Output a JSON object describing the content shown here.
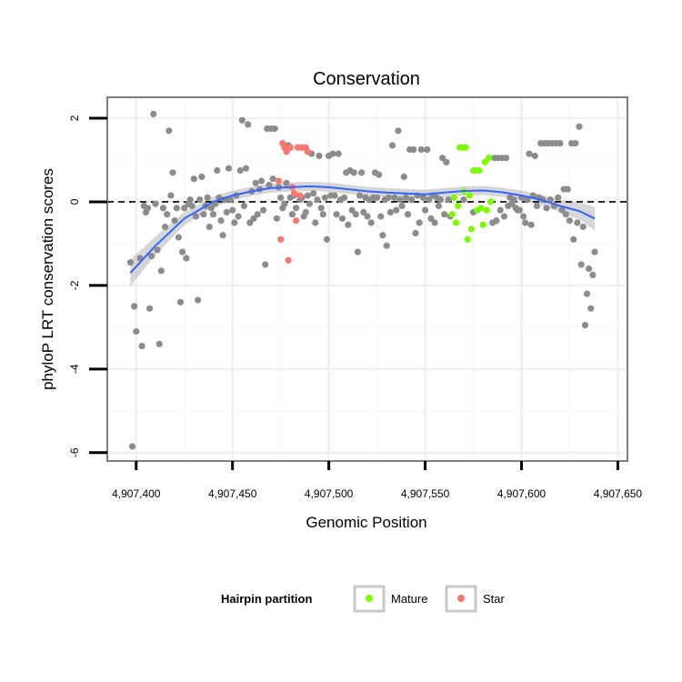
{
  "chart_data": {
    "type": "scatter",
    "title": "Conservation",
    "xlabel": "Genomic Position",
    "ylabel": "phyloP LRT conservation scores",
    "xlim": [
      4907385,
      4907655
    ],
    "ylim": [
      -6.2,
      2.5
    ],
    "x_ticks": [
      {
        "value": 4907400,
        "label": "4,907,400"
      },
      {
        "value": 4907450,
        "label": "4,907,450"
      },
      {
        "value": 4907500,
        "label": "4,907,500"
      },
      {
        "value": 4907550,
        "label": "4,907,550"
      },
      {
        "value": 4907600,
        "label": "4,907,600"
      },
      {
        "value": 4907650,
        "label": "4,907,650"
      }
    ],
    "y_ticks": [
      {
        "value": 2,
        "label": "2"
      },
      {
        "value": 0,
        "label": "0"
      },
      {
        "value": -2,
        "label": "-2"
      },
      {
        "value": -4,
        "label": "-4"
      },
      {
        "value": -6,
        "label": "-6"
      }
    ],
    "reference_line": {
      "y": 0,
      "style": "dashed",
      "color": "#000000"
    },
    "legend": {
      "title": "Hairpin partition",
      "position": "bottom",
      "entries": [
        {
          "label": "Mature",
          "color": "#7CFC00"
        },
        {
          "label": "Star",
          "color": "#F8766D"
        }
      ]
    },
    "colors": {
      "other": "#8C8C8C",
      "smooth_line": "#3366FF",
      "confidence_band": "#C8C8C8"
    },
    "series": [
      {
        "name": "Other",
        "color": "#8C8C8C",
        "points": [
          [
            4907397,
            -1.45
          ],
          [
            4907398,
            -5.85
          ],
          [
            4907399,
            -2.5
          ],
          [
            4907400,
            -3.1
          ],
          [
            4907402,
            -1.35
          ],
          [
            4907403,
            -3.45
          ],
          [
            4907404,
            -0.1
          ],
          [
            4907405,
            -0.25
          ],
          [
            4907406,
            -0.15
          ],
          [
            4907407,
            -2.55
          ],
          [
            4907408,
            -1.3
          ],
          [
            4907409,
            2.1
          ],
          [
            4907410,
            -0.05
          ],
          [
            4907411,
            -1.15
          ],
          [
            4907412,
            -3.4
          ],
          [
            4907413,
            -1.65
          ],
          [
            4907414,
            -0.15
          ],
          [
            4907415,
            -0.6
          ],
          [
            4907416,
            -0.3
          ],
          [
            4907417,
            1.7
          ],
          [
            4907418,
            0.15
          ],
          [
            4907419,
            0.7
          ],
          [
            4907420,
            -0.45
          ],
          [
            4907421,
            -0.15
          ],
          [
            4907422,
            -0.85
          ],
          [
            4907423,
            -2.4
          ],
          [
            4907424,
            -1.2
          ],
          [
            4907425,
            -0.15
          ],
          [
            4907426,
            -1.35
          ],
          [
            4907427,
            -0.05
          ],
          [
            4907428,
            0.05
          ],
          [
            4907429,
            -0.1
          ],
          [
            4907430,
            0.55
          ],
          [
            4907431,
            -0.35
          ],
          [
            4907432,
            -2.35
          ],
          [
            4907433,
            0.05
          ],
          [
            4907434,
            0.6
          ],
          [
            4907435,
            -0.3
          ],
          [
            4907436,
            -0.1
          ],
          [
            4907437,
            0.1
          ],
          [
            4907438,
            -0.6
          ],
          [
            4907439,
            -0.15
          ],
          [
            4907440,
            -0.3
          ],
          [
            4907441,
            -0.05
          ],
          [
            4907442,
            0.75
          ],
          [
            4907443,
            0.1
          ],
          [
            4907444,
            -0.45
          ],
          [
            4907445,
            -0.8
          ],
          [
            4907446,
            0.05
          ],
          [
            4907447,
            -0.25
          ],
          [
            4907448,
            0.8
          ],
          [
            4907449,
            0.05
          ],
          [
            4907450,
            -0.2
          ],
          [
            4907451,
            -0.5
          ],
          [
            4907452,
            0.15
          ],
          [
            4907453,
            -0.35
          ],
          [
            4907454,
            0.75
          ],
          [
            4907455,
            1.95
          ],
          [
            4907456,
            -0.1
          ],
          [
            4907457,
            0.8
          ],
          [
            4907458,
            1.85
          ],
          [
            4907459,
            -0.5
          ],
          [
            4907460,
            0.25
          ],
          [
            4907461,
            -0.4
          ],
          [
            4907462,
            0.45
          ],
          [
            4907463,
            -0.3
          ],
          [
            4907464,
            0.3
          ],
          [
            4907465,
            0.5
          ],
          [
            4907466,
            -0.2
          ],
          [
            4907467,
            -1.5
          ],
          [
            4907468,
            1.75
          ],
          [
            4907469,
            0.4
          ],
          [
            4907470,
            1.75
          ],
          [
            4907471,
            0.55
          ],
          [
            4907472,
            1.75
          ],
          [
            4907473,
            -0.4
          ],
          [
            4907474,
            0.35
          ],
          [
            4907475,
            0.1
          ],
          [
            4907476,
            -0.15
          ],
          [
            4907477,
            -0.05
          ],
          [
            4907478,
            0.45
          ],
          [
            4907479,
            1.35
          ],
          [
            4907480,
            0.1
          ],
          [
            4907481,
            -0.3
          ],
          [
            4907482,
            0.15
          ],
          [
            4907483,
            -0.15
          ],
          [
            4907484,
            1.3
          ],
          [
            4907485,
            0.05
          ],
          [
            4907486,
            0.1
          ],
          [
            4907487,
            -0.35
          ],
          [
            4907488,
            -0.25
          ],
          [
            4907489,
            0.15
          ],
          [
            4907490,
            -0.05
          ],
          [
            4907491,
            1.15
          ],
          [
            4907492,
            0.2
          ],
          [
            4907493,
            -0.5
          ],
          [
            4907494,
            0.05
          ],
          [
            4907495,
            1.1
          ],
          [
            4907496,
            -0.15
          ],
          [
            4907497,
            -0.3
          ],
          [
            4907498,
            0.1
          ],
          [
            4907499,
            -0.9
          ],
          [
            4907500,
            1.1
          ],
          [
            4907501,
            0.15
          ],
          [
            4907502,
            1.15
          ],
          [
            4907503,
            0.15
          ],
          [
            4907504,
            -0.3
          ],
          [
            4907505,
            1.15
          ],
          [
            4907506,
            0.05
          ],
          [
            4907507,
            -0.4
          ],
          [
            4907508,
            0.1
          ],
          [
            4907509,
            0.7
          ],
          [
            4907510,
            -0.55
          ],
          [
            4907511,
            0.75
          ],
          [
            4907512,
            -0.2
          ],
          [
            4907513,
            0.7
          ],
          [
            4907514,
            -0.3
          ],
          [
            4907515,
            -1.2
          ],
          [
            4907516,
            0.15
          ],
          [
            4907517,
            0.7
          ],
          [
            4907518,
            -0.25
          ],
          [
            4907519,
            0.1
          ],
          [
            4907520,
            -0.35
          ],
          [
            4907521,
            0.05
          ],
          [
            4907522,
            -0.5
          ],
          [
            4907523,
            0.1
          ],
          [
            4907524,
            0.7
          ],
          [
            4907525,
            0.1
          ],
          [
            4907526,
            0.65
          ],
          [
            4907527,
            -0.35
          ],
          [
            4907528,
            -0.8
          ],
          [
            4907529,
            0.05
          ],
          [
            4907530,
            -1.05
          ],
          [
            4907531,
            0.1
          ],
          [
            4907532,
            -0.25
          ],
          [
            4907533,
            1.35
          ],
          [
            4907534,
            0.1
          ],
          [
            4907535,
            -0.2
          ],
          [
            4907536,
            1.7
          ],
          [
            4907537,
            0.05
          ],
          [
            4907538,
            -0.1
          ],
          [
            4907539,
            0.6
          ],
          [
            4907540,
            0.1
          ],
          [
            4907541,
            -0.3
          ],
          [
            4907542,
            1.25
          ],
          [
            4907543,
            0.05
          ],
          [
            4907544,
            1.25
          ],
          [
            4907545,
            -0.75
          ],
          [
            4907546,
            0.15
          ],
          [
            4907547,
            -0.5
          ],
          [
            4907548,
            1.25
          ],
          [
            4907549,
            0.1
          ],
          [
            4907550,
            -0.2
          ],
          [
            4907551,
            1.25
          ],
          [
            4907552,
            0.05
          ],
          [
            4907553,
            -0.4
          ],
          [
            4907554,
            0.15
          ],
          [
            4907555,
            -0.5
          ],
          [
            4907556,
            0.1
          ],
          [
            4907557,
            -0.1
          ],
          [
            4907558,
            0.05
          ],
          [
            4907559,
            1.05
          ],
          [
            4907560,
            -0.3
          ],
          [
            4907561,
            0.95
          ],
          [
            4907562,
            0.05
          ],
          [
            4907563,
            -0.35
          ],
          [
            4907570,
            0.05
          ],
          [
            4907575,
            -0.25
          ],
          [
            4907585,
            -0.5
          ],
          [
            4907586,
            1.05
          ],
          [
            4907587,
            -0.45
          ],
          [
            4907588,
            1.05
          ],
          [
            4907589,
            -0.2
          ],
          [
            4907590,
            1.05
          ],
          [
            4907591,
            -0.35
          ],
          [
            4907592,
            1.05
          ],
          [
            4907593,
            -0.1
          ],
          [
            4907594,
            0.1
          ],
          [
            4907595,
            -0.05
          ],
          [
            4907596,
            0.05
          ],
          [
            4907597,
            -0.15
          ],
          [
            4907598,
            -0.2
          ],
          [
            4907599,
            -0.2
          ],
          [
            4907600,
            0.1
          ],
          [
            4907601,
            -0.35
          ],
          [
            4907602,
            -0.5
          ],
          [
            4907603,
            0.05
          ],
          [
            4907604,
            1.15
          ],
          [
            4907605,
            -0.55
          ],
          [
            4907606,
            0.15
          ],
          [
            4907607,
            1.1
          ],
          [
            4907608,
            -0.1
          ],
          [
            4907609,
            0.1
          ],
          [
            4907610,
            1.4
          ],
          [
            4907611,
            0.05
          ],
          [
            4907612,
            1.4
          ],
          [
            4907613,
            -0.15
          ],
          [
            4907614,
            1.4
          ],
          [
            4907615,
            0.05
          ],
          [
            4907616,
            1.4
          ],
          [
            4907617,
            -0.1
          ],
          [
            4907618,
            1.4
          ],
          [
            4907619,
            0.1
          ],
          [
            4907620,
            1.4
          ],
          [
            4907621,
            -0.2
          ],
          [
            4907622,
            0.3
          ],
          [
            4907623,
            -0.3
          ],
          [
            4907624,
            0.3
          ],
          [
            4907625,
            -0.45
          ],
          [
            4907626,
            1.4
          ],
          [
            4907627,
            -0.9
          ],
          [
            4907628,
            1.4
          ],
          [
            4907629,
            -0.5
          ],
          [
            4907630,
            1.8
          ],
          [
            4907631,
            -1.5
          ],
          [
            4907632,
            -0.6
          ],
          [
            4907633,
            -2.95
          ],
          [
            4907634,
            -2.2
          ],
          [
            4907635,
            -1.6
          ],
          [
            4907636,
            -2.55
          ],
          [
            4907637,
            -1.75
          ],
          [
            4907638,
            -1.2
          ]
        ]
      },
      {
        "name": "Mature",
        "color": "#7CFC00",
        "points": [
          [
            4907564,
            -0.3
          ],
          [
            4907565,
            0.1
          ],
          [
            4907566,
            -0.5
          ],
          [
            4907567,
            -0.1
          ],
          [
            4907568,
            1.3
          ],
          [
            4907569,
            1.3
          ],
          [
            4907570,
            0.25
          ],
          [
            4907571,
            1.3
          ],
          [
            4907572,
            -0.9
          ],
          [
            4907573,
            0.15
          ],
          [
            4907574,
            -0.65
          ],
          [
            4907575,
            0.75
          ],
          [
            4907576,
            0.75
          ],
          [
            4907577,
            -0.2
          ],
          [
            4907578,
            0.75
          ],
          [
            4907579,
            -0.15
          ],
          [
            4907580,
            -0.55
          ],
          [
            4907581,
            0.95
          ],
          [
            4907582,
            -0.2
          ],
          [
            4907583,
            1.05
          ],
          [
            4907584,
            0.0
          ]
        ]
      },
      {
        "name": "Star",
        "color": "#F8766D",
        "points": [
          [
            4907474,
            0.5
          ],
          [
            4907475,
            -0.9
          ],
          [
            4907476,
            1.4
          ],
          [
            4907477,
            1.3
          ],
          [
            4907478,
            1.2
          ],
          [
            4907479,
            -1.4
          ],
          [
            4907480,
            1.3
          ],
          [
            4907481,
            0.35
          ],
          [
            4907482,
            0.2
          ],
          [
            4907483,
            -0.45
          ],
          [
            4907484,
            1.3
          ],
          [
            4907485,
            0.15
          ],
          [
            4907486,
            1.3
          ],
          [
            4907487,
            1.3
          ],
          [
            4907488,
            1.3
          ],
          [
            4907489,
            1.2
          ]
        ]
      }
    ],
    "smooth": [
      [
        4907397,
        -1.7
      ],
      [
        4907410,
        -1.05
      ],
      [
        4907425,
        -0.4
      ],
      [
        4907440,
        0.0
      ],
      [
        4907450,
        0.15
      ],
      [
        4907460,
        0.25
      ],
      [
        4907470,
        0.33
      ],
      [
        4907480,
        0.35
      ],
      [
        4907490,
        0.37
      ],
      [
        4907500,
        0.35
      ],
      [
        4907510,
        0.3
      ],
      [
        4907520,
        0.25
      ],
      [
        4907530,
        0.22
      ],
      [
        4907540,
        0.2
      ],
      [
        4907550,
        0.18
      ],
      [
        4907560,
        0.22
      ],
      [
        4907570,
        0.26
      ],
      [
        4907580,
        0.27
      ],
      [
        4907590,
        0.23
      ],
      [
        4907600,
        0.15
      ],
      [
        4907610,
        0.05
      ],
      [
        4907620,
        -0.1
      ],
      [
        4907630,
        -0.22
      ],
      [
        4907638,
        -0.4
      ]
    ],
    "smooth_band_halfwidth": [
      0.32,
      0.22,
      0.16,
      0.13,
      0.12,
      0.11,
      0.11,
      0.11,
      0.11,
      0.11,
      0.11,
      0.11,
      0.11,
      0.11,
      0.11,
      0.11,
      0.11,
      0.11,
      0.11,
      0.12,
      0.13,
      0.15,
      0.2,
      0.28
    ]
  }
}
